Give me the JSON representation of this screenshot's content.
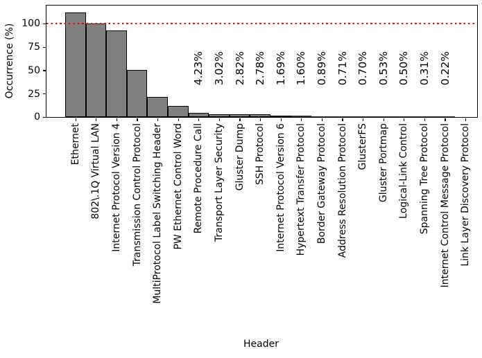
{
  "chart_data": {
    "type": "bar",
    "title": "",
    "xlabel": "Header",
    "ylabel": "Occurrence (%)",
    "categories": [
      "Ethernet",
      "802\\.1Q Virtual LAN",
      "Internet Protocol Version 4",
      "Transmission Control Protocol",
      "MultiProtocol Label Switching Header",
      "PW Ethernet Control Word",
      "Remote Procedure Call",
      "Transport Layer Security",
      "Gluster Dump",
      "SSH Protocol",
      "Internet Protocol Version 6",
      "Hypertext Transfer Protocol",
      "Border Gateway Protocol",
      "Address Resolution Protocol",
      "GlusterFS",
      "Gluster Portmap",
      "Logical-Link Control",
      "Spanning Tree Protocol",
      "Internet Control Message Protocol",
      "Link Layer Discovery Protocol"
    ],
    "values": [
      112.0,
      99.9,
      92.6,
      50.6,
      21.5,
      12.0,
      4.23,
      3.02,
      2.82,
      2.78,
      1.69,
      1.6,
      0.89,
      0.71,
      0.7,
      0.53,
      0.5,
      0.31,
      0.22,
      0.05
    ],
    "bar_value_labels": [
      "",
      "",
      "",
      "",
      "",
      "",
      "4.23%",
      "3.02%",
      "2.82%",
      "2.78%",
      "1.69%",
      "1.60%",
      "0.89%",
      "0.71%",
      "0.70%",
      "0.53%",
      "0.50%",
      "0.31%",
      "0.22%",
      ""
    ],
    "yticks": [
      0,
      25,
      50,
      75,
      100
    ],
    "ylim": [
      0,
      119.3
    ],
    "grid": false,
    "legend": null,
    "reference_line": {
      "y": 100,
      "style": "dotted",
      "color": "#ff0000"
    },
    "bar_fill_color": "#808080",
    "bar_edge_color": "#000000",
    "axis_color": "#000000",
    "background_color": "#ffffff"
  }
}
